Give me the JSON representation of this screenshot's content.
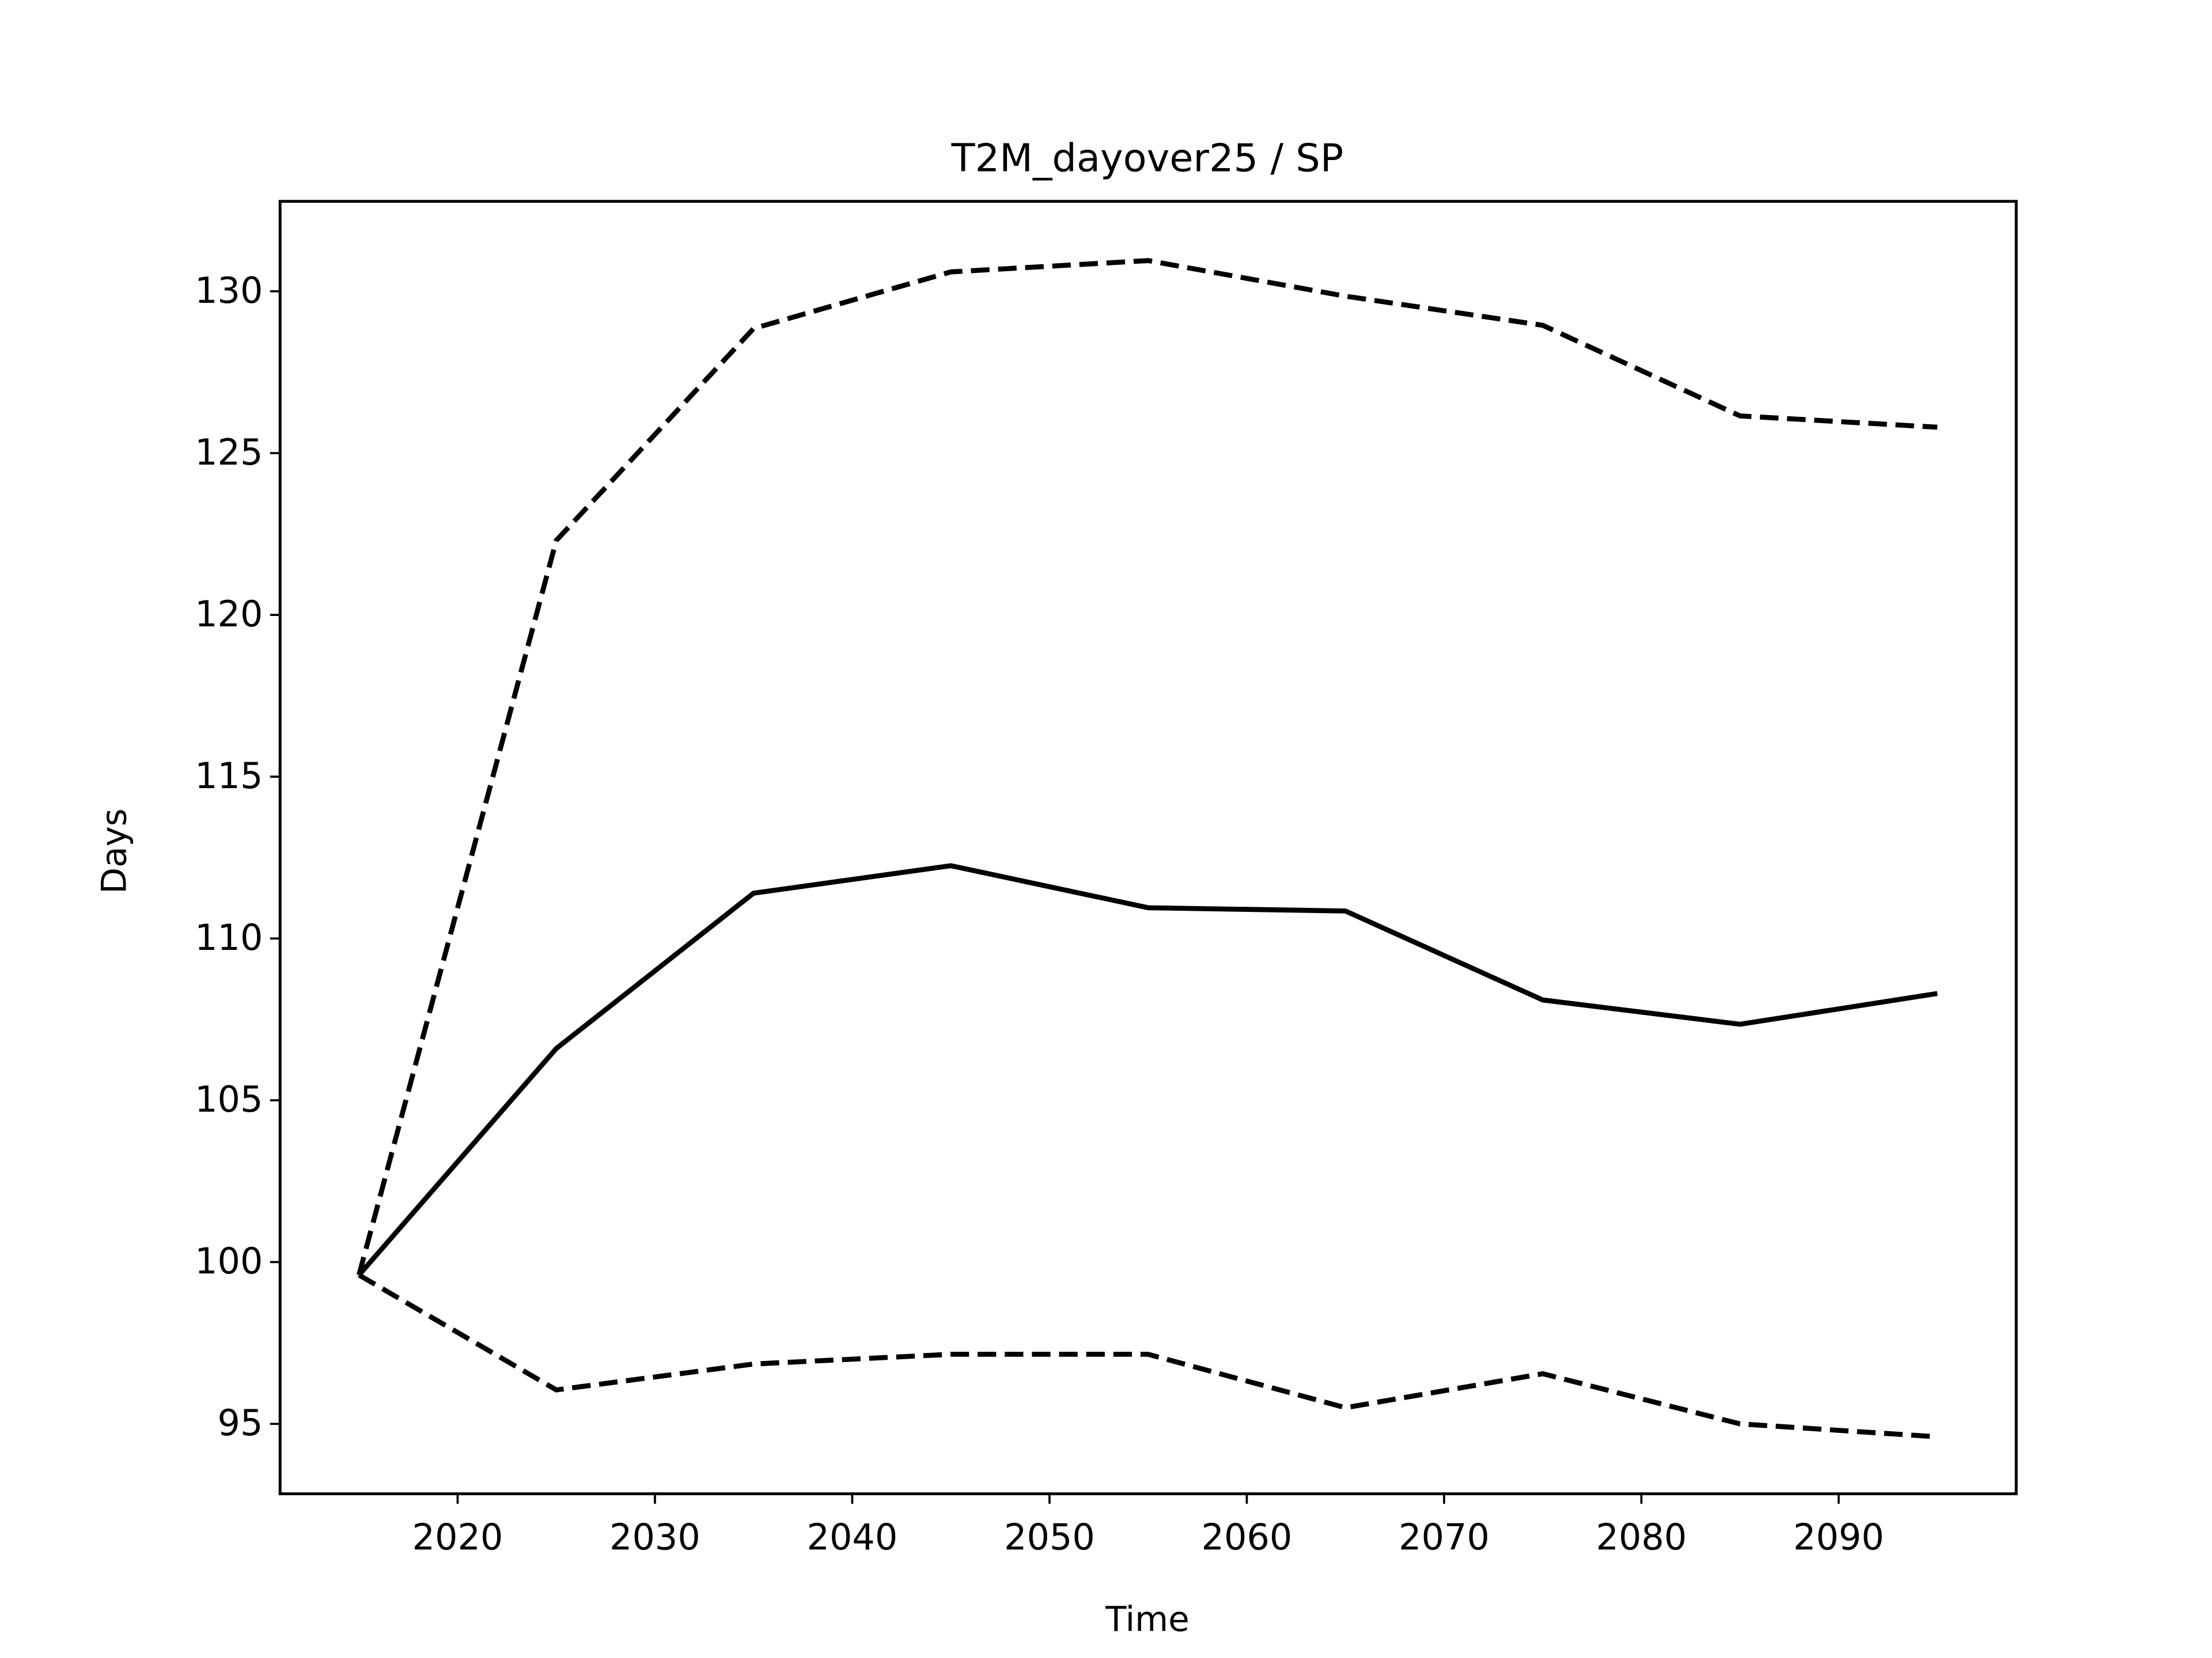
{
  "chart_data": {
    "type": "line",
    "title": "T2M_dayover25 / SP",
    "xlabel": "Time",
    "ylabel": "Days",
    "x": [
      2015,
      2025,
      2035,
      2045,
      2055,
      2065,
      2075,
      2085,
      2095
    ],
    "series": [
      {
        "color": "#000000",
        "linestyle": "solid",
        "values": [
          99.6,
          106.6,
          111.4,
          112.25,
          110.95,
          110.85,
          108.1,
          107.35,
          108.3
        ]
      },
      {
        "color": "#000000",
        "linestyle": "dashed",
        "values": [
          99.6,
          122.3,
          128.85,
          130.6,
          130.95,
          129.85,
          128.95,
          126.15,
          125.8
        ]
      },
      {
        "color": "#000000",
        "linestyle": "dashed",
        "values": [
          99.6,
          96.05,
          96.85,
          97.15,
          97.15,
          95.5,
          96.55,
          95.0,
          94.6
        ]
      }
    ],
    "xlim": [
      2011,
      2099
    ],
    "xticks": [
      2020,
      2030,
      2040,
      2050,
      2060,
      2070,
      2080,
      2090
    ],
    "ylim": [
      92.84,
      132.78
    ],
    "yticks": [
      95,
      100,
      105,
      110,
      115,
      120,
      125,
      130
    ],
    "grid": false
  }
}
